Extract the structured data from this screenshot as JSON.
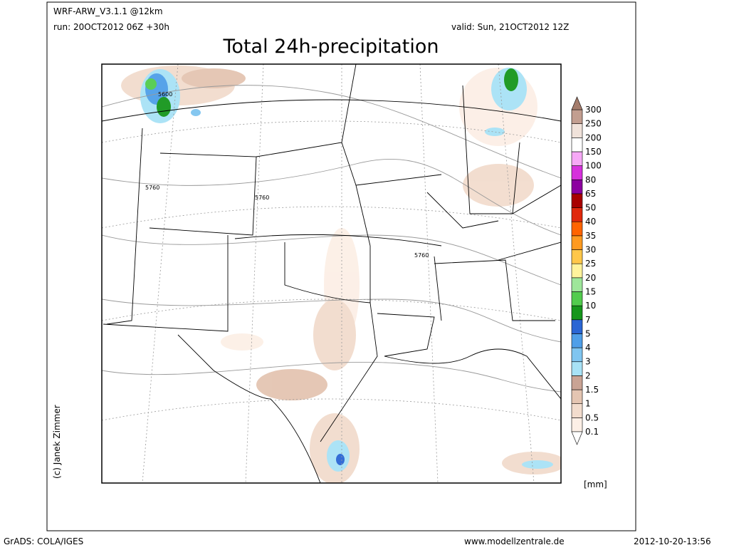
{
  "header": {
    "model": "WRF-ARW_V3.1.1 @12km",
    "run": "run: 20OCT2012 06Z +30h",
    "valid": "valid: Sun, 21OCT2012 12Z",
    "title": "Total 24h-precipitation"
  },
  "map": {
    "contour_labels": [
      "5600",
      "5760",
      "5760",
      "5760"
    ]
  },
  "colorbar": {
    "levels": [
      0.1,
      0.5,
      1,
      1.5,
      2,
      3,
      4,
      5,
      7,
      10,
      15,
      20,
      25,
      30,
      35,
      40,
      50,
      65,
      80,
      100,
      150,
      200,
      250,
      300
    ],
    "colors": [
      "#fcefe6",
      "#f2dccd",
      "#e4c5b2",
      "#c9a394",
      "#a8e2f6",
      "#7fc5f0",
      "#4f9fe8",
      "#2a66d4",
      "#16961c",
      "#52cc4e",
      "#9ee69a",
      "#fff39c",
      "#ffc74a",
      "#ff9a20",
      "#ff6400",
      "#e0280c",
      "#a80000",
      "#8c00a0",
      "#d630dc",
      "#f6a8f6",
      "#ffffff",
      "#f0e2da",
      "#c29e90"
    ],
    "under_color": "#ffffff",
    "over_color": "#a47c6c",
    "unit": "[mm]"
  },
  "credit": "(c) Janek Zimmer",
  "footer": {
    "software": "GrADS: COLA/IGES",
    "website": "www.modellzentrale.de",
    "timestamp": "2012-10-20-13:56"
  }
}
